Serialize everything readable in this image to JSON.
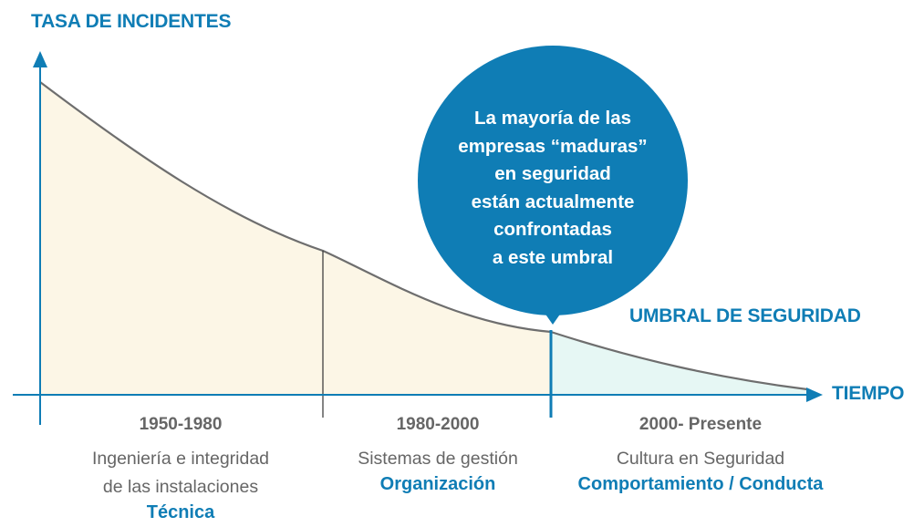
{
  "axes": {
    "y_title": "TASA DE INCIDENTES",
    "x_title": "TIEMPO"
  },
  "threshold_label": "UMBRAL DE SEGURIDAD",
  "callout": {
    "lines": [
      "La mayoría de las",
      "empresas “maduras”",
      "en seguridad",
      "están actualmente",
      "confrontadas",
      "a este umbral"
    ]
  },
  "eras": [
    {
      "period": "1950-1980",
      "description_lines": [
        "Ingeniería e integridad",
        "de las instalaciones"
      ],
      "focus": "Técnica"
    },
    {
      "period": "1980-2000",
      "description_lines": [
        "Sistemas de gestión"
      ],
      "focus": "Organización"
    },
    {
      "period": "2000- Presente",
      "description_lines": [
        "Cultura en Seguridad"
      ],
      "focus": "Comportamiento / Conducta"
    }
  ],
  "colors": {
    "axis": "#0f7db5",
    "curve": "#6e6e6e",
    "era_fill": "#fcf6e6",
    "post_threshold_fill": "#e6f7f4",
    "bubble": "#0f7db5",
    "text_gray": "#666666"
  }
}
